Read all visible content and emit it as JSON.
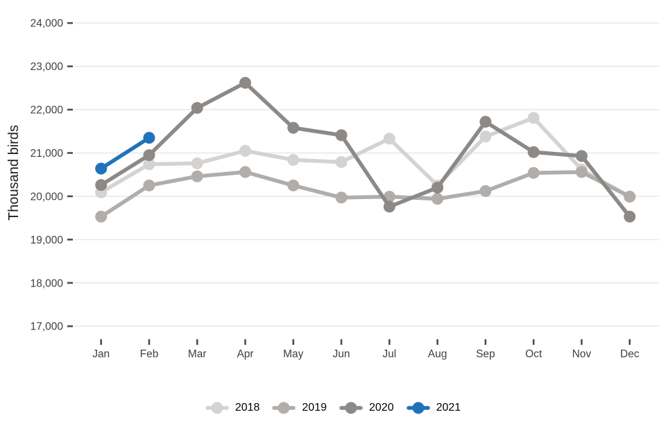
{
  "chart_data": {
    "type": "line",
    "title": "",
    "xlabel": "",
    "ylabel": "Thousand birds",
    "categories": [
      "Jan",
      "Feb",
      "Mar",
      "Apr",
      "May",
      "Jun",
      "Jul",
      "Aug",
      "Sep",
      "Oct",
      "Nov",
      "Dec"
    ],
    "yticks": [
      17000,
      18000,
      19000,
      20000,
      21000,
      22000,
      23000,
      24000
    ],
    "ytick_labels": [
      "17,000",
      "18,000",
      "19,000",
      "20,000",
      "21,000",
      "22,000",
      "23,000",
      "24,000"
    ],
    "ylim": [
      17000,
      24000
    ],
    "grid": "horizontal",
    "legend_position": "bottom",
    "series": [
      {
        "name": "2018",
        "color": "#d5d3d1",
        "values": [
          20090,
          20740,
          20760,
          21050,
          20840,
          20790,
          21330,
          20250,
          21380,
          21810,
          20620,
          19990
        ]
      },
      {
        "name": "2019",
        "color": "#b0adaa",
        "values": [
          19530,
          20250,
          20460,
          20560,
          20250,
          19970,
          19990,
          19940,
          20120,
          20540,
          20560,
          19990
        ]
      },
      {
        "name": "2020",
        "color": "#8c8986",
        "values": [
          20260,
          20950,
          22040,
          22620,
          21580,
          21410,
          19760,
          20200,
          21720,
          21020,
          20930,
          19530
        ]
      },
      {
        "name": "2021",
        "color": "#2272b9",
        "values": [
          20640,
          21350,
          null,
          null,
          null,
          null,
          null,
          null,
          null,
          null,
          null,
          null
        ]
      }
    ],
    "colors": {
      "gridline": "#e7e7e7",
      "tick_mark": "#4d4d4d",
      "axis_text": "#3f3f3f",
      "legend_text": "#000000"
    }
  }
}
